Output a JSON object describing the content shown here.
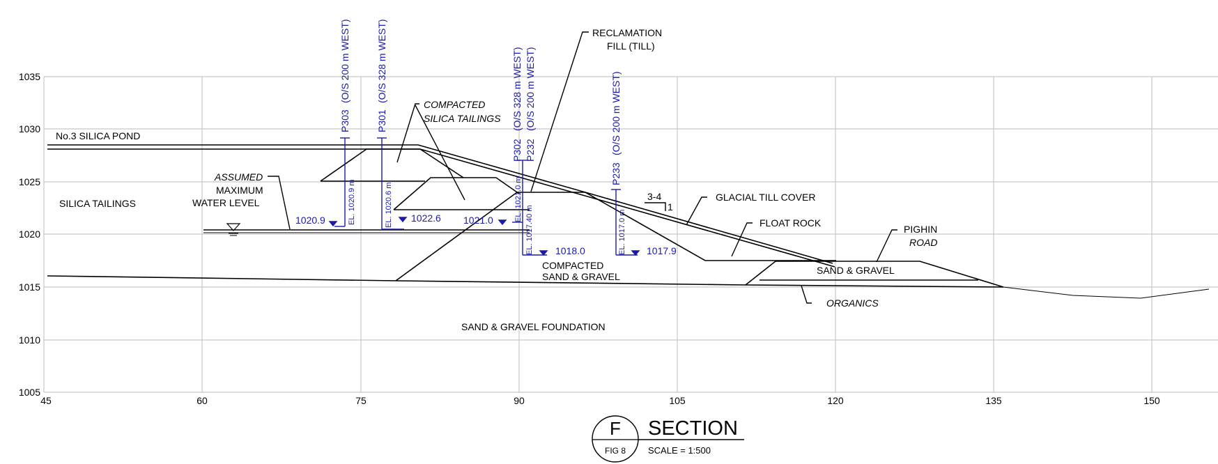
{
  "axes": {
    "x_ticks": [
      "45",
      "60",
      "75",
      "90",
      "105",
      "120",
      "135",
      "150"
    ],
    "y_ticks": [
      "1035",
      "1030",
      "1025",
      "1020",
      "1015",
      "1010",
      "1005"
    ]
  },
  "labels": {
    "silica_pond": "No.3 SILICA POND",
    "silica_tailings": "SILICA TAILINGS",
    "assumed": "ASSUMED",
    "maximum": "MAXIMUM",
    "water_level": "WATER LEVEL",
    "compacted_silica_1": "COMPACTED",
    "compacted_silica_2": "SILICA TAILINGS",
    "reclamation_1": "RECLAMATION",
    "reclamation_2": "FILL (TILL)",
    "glacial_till": "GLACIAL TILL COVER",
    "float_rock": "FLOAT ROCK",
    "pighin_1": "PIGHIN",
    "pighin_2": "ROAD",
    "sand_gravel": "SAND & GRAVEL",
    "organics": "ORGANICS",
    "compacted_sg_1": "COMPACTED",
    "compacted_sg_2": "SAND & GRAVEL",
    "foundation": "SAND & GRAVEL FOUNDATION",
    "slope_top": "3-4",
    "slope_side": "1"
  },
  "instruments": [
    {
      "id": "P303",
      "offset": "(O/S 200 m WEST)",
      "el": "EL. 1020.9 m",
      "water": "1020.9"
    },
    {
      "id": "P301",
      "offset": "(O/S 328 m WEST)",
      "el": "EL. 1020.6 m",
      "water": "1022.6"
    },
    {
      "id": "P302",
      "offset": "(O/S 328 m WEST)",
      "el": "EL. 1021.0 m",
      "water": "1021.0"
    },
    {
      "id": "P232",
      "offset": "(O/S 200 m WEST)",
      "el": "EL. 1017.40 m",
      "water": "1018.0"
    },
    {
      "id": "P233",
      "offset": "(O/S 200 m WEST)",
      "el": "EL. 1017.0 m",
      "water": "1017.9"
    }
  ],
  "title_block": {
    "letter": "F",
    "fig": "FIG 8",
    "section": "SECTION",
    "scale": "SCALE = 1:500"
  },
  "colors": {
    "grid": "#c8c8c8",
    "line": "#000000",
    "instrument": "#1a1aaa"
  }
}
